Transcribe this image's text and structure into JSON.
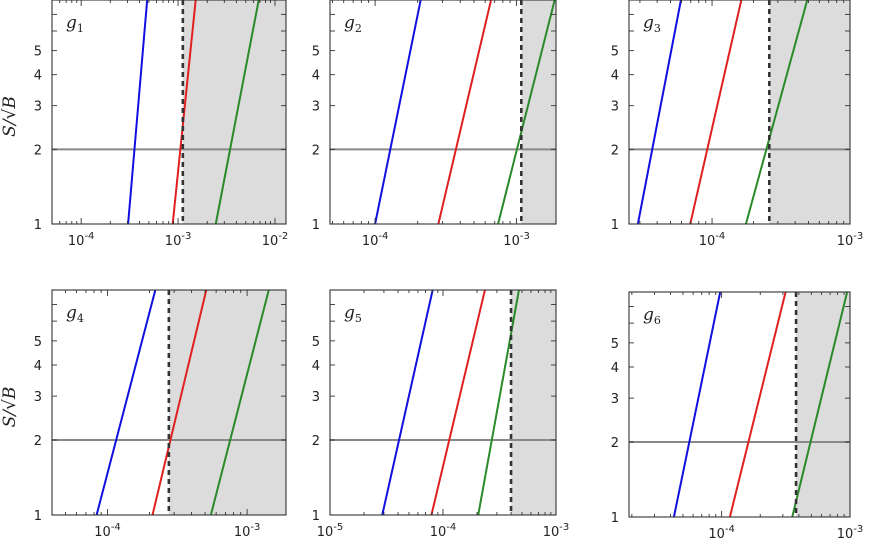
{
  "chart_data": [
    {
      "type": "line",
      "panel_label": "g",
      "panel_index": "1",
      "xscale": "log",
      "yscale": "log",
      "xlim": [
        5e-05,
        0.013
      ],
      "ylim": [
        1,
        8
      ],
      "xticks": [
        0.0001,
        0.001,
        0.01
      ],
      "xtick_labels": [
        "10-4",
        "10-3",
        "10-2"
      ],
      "yticks": [
        1,
        2,
        3,
        4,
        5
      ],
      "ytick_labels": [
        "1",
        "2",
        "3",
        "4",
        "5"
      ],
      "ylabel": "S/√B",
      "threshold_y": 2,
      "excluded_x_min": 0.00112,
      "series": [
        {
          "color": "#1010e0",
          "x": [
            0.000305,
            0.00048
          ],
          "y": [
            1,
            8
          ]
        },
        {
          "color": "#e02020",
          "x": [
            0.00088,
            0.00152
          ],
          "y": [
            1,
            8
          ]
        },
        {
          "color": "#2a8a2a",
          "x": [
            0.00245,
            0.0068
          ],
          "y": [
            1,
            8
          ]
        }
      ]
    },
    {
      "type": "line",
      "panel_label": "g",
      "panel_index": "2",
      "xscale": "log",
      "yscale": "log",
      "xlim": [
        4.8e-05,
        0.0019
      ],
      "ylim": [
        1,
        8
      ],
      "xticks": [
        0.0001,
        0.001
      ],
      "xtick_labels": [
        "10-4",
        "10-3"
      ],
      "yticks": [
        1,
        2,
        3,
        4,
        5
      ],
      "ytick_labels": [
        "1",
        "2",
        "3",
        "4",
        "5"
      ],
      "ylabel": "",
      "threshold_y": 2,
      "excluded_x_min": 0.00108,
      "series": [
        {
          "color": "#1010e0",
          "x": [
            0.0001,
            0.00021
          ],
          "y": [
            1,
            8
          ]
        },
        {
          "color": "#e02020",
          "x": [
            0.00028,
            0.00066
          ],
          "y": [
            1,
            8
          ]
        },
        {
          "color": "#2a8a2a",
          "x": [
            0.00074,
            0.00186
          ],
          "y": [
            1,
            8
          ]
        }
      ]
    },
    {
      "type": "line",
      "panel_label": "g",
      "panel_index": "3",
      "xscale": "log",
      "yscale": "log",
      "xlim": [
        2.5e-05,
        0.001
      ],
      "ylim": [
        1,
        8
      ],
      "xticks": [
        0.0001,
        0.001
      ],
      "xtick_labels": [
        "10-4",
        "10-3"
      ],
      "yticks": [
        1,
        2,
        3,
        4,
        5
      ],
      "ytick_labels": [
        "1",
        "2",
        "3",
        "4",
        "5"
      ],
      "ylabel": "",
      "threshold_y": 2,
      "excluded_x_min": 0.00026,
      "series": [
        {
          "color": "#1010e0",
          "x": [
            2.9e-05,
            5.95e-05
          ],
          "y": [
            1,
            8
          ]
        },
        {
          "color": "#e02020",
          "x": [
            6.95e-05,
            0.000163
          ],
          "y": [
            1,
            8
          ]
        },
        {
          "color": "#2a8a2a",
          "x": [
            0.000176,
            0.00049
          ],
          "y": [
            1,
            8
          ]
        }
      ]
    },
    {
      "type": "line",
      "panel_label": "g",
      "panel_index": "4",
      "xscale": "log",
      "yscale": "log",
      "xlim": [
        4e-05,
        0.0019
      ],
      "ylim": [
        1,
        8
      ],
      "xticks": [
        0.0001,
        0.001
      ],
      "xtick_labels": [
        "10-4",
        "10-3"
      ],
      "yticks": [
        1,
        2,
        3,
        4,
        5
      ],
      "ytick_labels": [
        "1",
        "2",
        "3",
        "4",
        "5"
      ],
      "ylabel": "S/√B",
      "threshold_y": 2,
      "excluded_x_min": 0.000275,
      "series": [
        {
          "color": "#1010e0",
          "x": [
            8.35e-05,
            0.00022
          ],
          "y": [
            1,
            8
          ]
        },
        {
          "color": "#e02020",
          "x": [
            0.00021,
            0.00051
          ],
          "y": [
            1,
            8
          ]
        },
        {
          "color": "#2a8a2a",
          "x": [
            0.00055,
            0.00143
          ],
          "y": [
            1,
            8
          ]
        }
      ]
    },
    {
      "type": "line",
      "panel_label": "g",
      "panel_index": "5",
      "xscale": "log",
      "yscale": "log",
      "xlim": [
        1e-05,
        0.001
      ],
      "ylim": [
        1,
        8
      ],
      "xticks": [
        1e-05,
        0.0001,
        0.001
      ],
      "xtick_labels": [
        "10-5",
        "10-4",
        "10-3"
      ],
      "yticks": [
        1,
        2,
        3,
        4,
        5
      ],
      "ytick_labels": [
        "1",
        "2",
        "3",
        "4",
        "5"
      ],
      "ylabel": "",
      "threshold_y": 2,
      "excluded_x_min": 0.0004,
      "series": [
        {
          "color": "#1010e0",
          "x": [
            2.9e-05,
            8.1e-05
          ],
          "y": [
            1,
            8
          ]
        },
        {
          "color": "#e02020",
          "x": [
            7.9e-05,
            0.000235
          ],
          "y": [
            1,
            8
          ]
        },
        {
          "color": "#2a8a2a",
          "x": [
            0.000205,
            0.00047
          ],
          "y": [
            1,
            8
          ]
        }
      ]
    },
    {
      "type": "line",
      "panel_label": "g",
      "panel_index": "6",
      "xscale": "log",
      "yscale": "log",
      "xlim": [
        1.9e-05,
        0.001
      ],
      "ylim": [
        1,
        8
      ],
      "xticks": [
        0.0001,
        0.001
      ],
      "xtick_labels": [
        "10-4",
        "10-3"
      ],
      "yticks": [
        1,
        2,
        3,
        4,
        5
      ],
      "ytick_labels": [
        "1",
        "2",
        "3",
        "4",
        "5"
      ],
      "ylabel": "",
      "threshold_y": 2,
      "excluded_x_min": 0.00038,
      "series": [
        {
          "color": "#1010e0",
          "x": [
            4.25e-05,
            9.75e-05
          ],
          "y": [
            1,
            8
          ]
        },
        {
          "color": "#e02020",
          "x": [
            0.000116,
            0.000315
          ],
          "y": [
            1,
            8
          ]
        },
        {
          "color": "#2a8a2a",
          "x": [
            0.000355,
            0.00095
          ],
          "y": [
            1,
            8
          ]
        }
      ]
    }
  ]
}
